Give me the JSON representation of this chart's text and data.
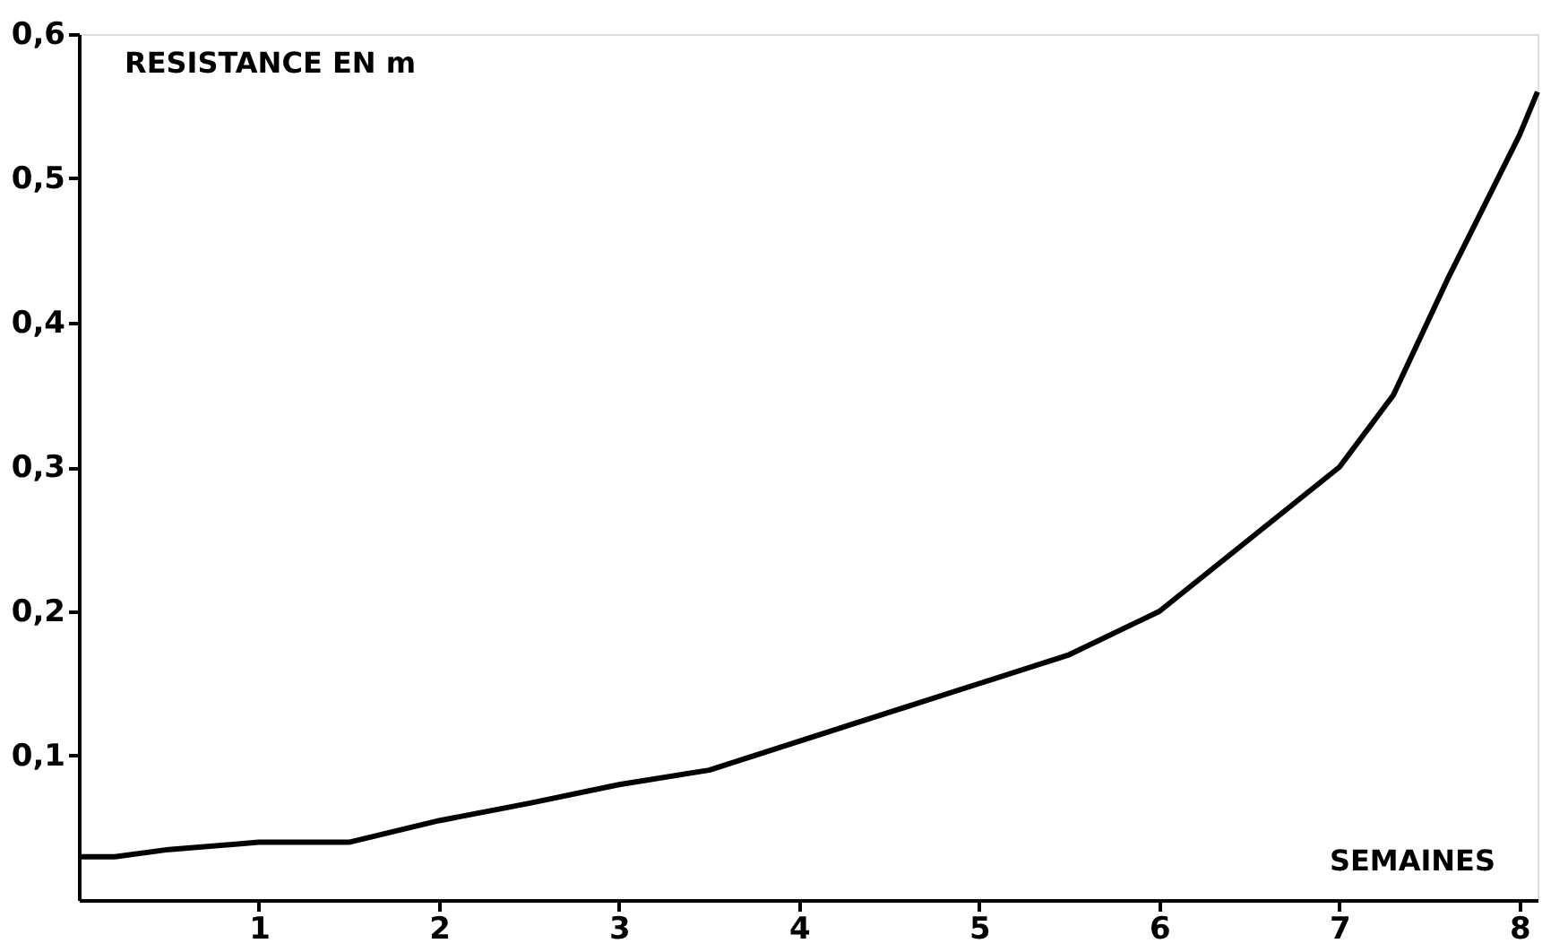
{
  "chart_data": {
    "type": "line",
    "xlabel": "SEMAINES",
    "ylabel": "RESISTANCE EN m",
    "x": [
      0,
      0.2,
      0.5,
      1,
      1.5,
      2,
      2.5,
      3,
      3.5,
      4,
      4.5,
      5,
      5.5,
      6,
      6.5,
      7,
      7.3,
      7.6,
      8,
      8.1
    ],
    "series": [
      {
        "color": "#000000",
        "values": [
          0.03,
          0.03,
          0.035,
          0.04,
          0.04,
          0.055,
          0.067,
          0.08,
          0.09,
          0.11,
          0.13,
          0.15,
          0.17,
          0.2,
          0.25,
          0.3,
          0.35,
          0.43,
          0.53,
          0.56
        ]
      }
    ],
    "xlim": [
      0,
      8.1
    ],
    "ylim": [
      0,
      0.6
    ],
    "xticks": [
      1,
      2,
      3,
      4,
      5,
      6,
      7,
      8
    ],
    "yticks": [
      {
        "value": 0.1,
        "label": "0,1"
      },
      {
        "value": 0.2,
        "label": "0,2"
      },
      {
        "value": 0.3,
        "label": "0,3"
      },
      {
        "value": 0.4,
        "label": "0,4"
      },
      {
        "value": 0.5,
        "label": "0,5"
      },
      {
        "value": 0.6,
        "label": "0,6"
      }
    ],
    "grid": false,
    "marker": "none",
    "line_style": "solid"
  }
}
